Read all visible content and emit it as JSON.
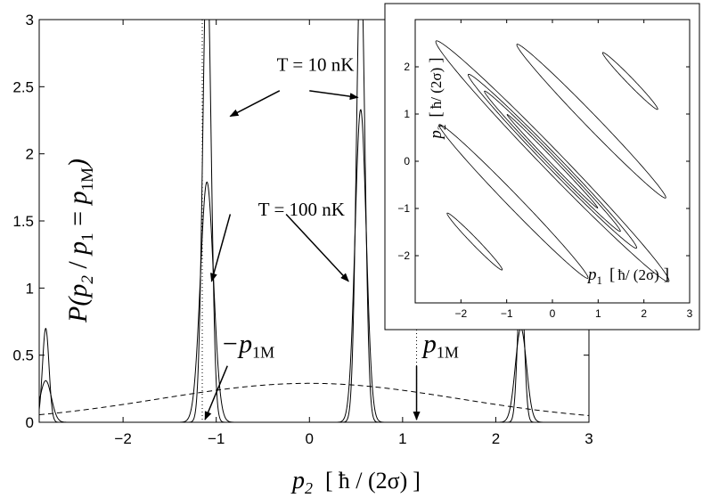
{
  "chart_data": [
    {
      "type": "line",
      "xlim": [
        -2.9,
        3
      ],
      "ylim": [
        0,
        3
      ],
      "x_ticks": [
        -2,
        -1,
        0,
        1,
        2,
        3
      ],
      "y_ticks": [
        0,
        0.5,
        1,
        1.5,
        2,
        2.5,
        3
      ],
      "x_tick_labels": [
        "−2",
        "−1",
        "0",
        "1",
        "2",
        "3"
      ],
      "y_tick_labels": [
        "0",
        "0.5",
        "1",
        "1.5",
        "2",
        "2.5",
        "3"
      ],
      "xlabel": {
        "var": "p",
        "sub": "2",
        "unit_open": "[",
        "unit": "ħ / (2σ)",
        "unit_close": "]"
      },
      "ylabel": {
        "text": "P(",
        "var1": "p",
        "sub1": "2",
        "slash": " / ",
        "var2": "p",
        "sub2": "1",
        "eq": " = ",
        "var3": "p",
        "sub3": "1M",
        "close": ")"
      },
      "grid": false,
      "series": [
        {
          "style": "solid",
          "kind": "gaussian-sum",
          "peaks": [
            [
              -2.83,
              0.7,
              0.035
            ],
            [
              -1.1,
              3.5,
              0.045
            ],
            [
              0.55,
              3.5,
              0.045
            ],
            [
              2.27,
              1.1,
              0.035
            ]
          ]
        },
        {
          "style": "solid",
          "kind": "gaussian-sum",
          "peaks": [
            [
              -2.83,
              0.31,
              0.06
            ],
            [
              -1.1,
              1.79,
              0.07
            ],
            [
              0.55,
              2.33,
              0.06
            ],
            [
              2.27,
              0.7,
              0.06
            ]
          ]
        },
        {
          "style": "dashed",
          "kind": "gaussian",
          "peaks": [
            [
              0,
              0.29,
              1.6
            ]
          ]
        }
      ],
      "reference_lines": [
        {
          "style": "dotted",
          "x": -1.15
        },
        {
          "style": "dotted",
          "x": 1.15
        }
      ],
      "annotations": [
        {
          "text": "T = 10 nK",
          "x": -0.35,
          "y": 2.62
        },
        {
          "text": "T = 100 nK",
          "x": -0.55,
          "y": 1.54
        },
        {
          "var": "−p",
          "sub": "1M",
          "x": -0.95,
          "y": 0.52
        },
        {
          "var": "p",
          "sub": "1M",
          "x": 1.22,
          "y": 0.52
        }
      ],
      "arrows": [
        {
          "from": [
            -0.32,
            2.47
          ],
          "to": [
            -0.85,
            2.28
          ]
        },
        {
          "from": [
            0.0,
            2.47
          ],
          "to": [
            0.52,
            2.42
          ]
        },
        {
          "from": [
            -0.85,
            1.55
          ],
          "to": [
            -1.05,
            1.05
          ]
        },
        {
          "from": [
            -0.25,
            1.55
          ],
          "to": [
            0.42,
            1.05
          ]
        },
        {
          "from": [
            -0.88,
            0.42
          ],
          "to": [
            -1.12,
            0.02
          ]
        },
        {
          "from": [
            1.15,
            0.42
          ],
          "to": [
            1.15,
            0.02
          ]
        }
      ]
    },
    {
      "type": "line",
      "role": "inset",
      "xlim": [
        -3,
        3
      ],
      "ylim": [
        -3,
        3
      ],
      "x_ticks": [
        -2,
        -1,
        0,
        1,
        2,
        3
      ],
      "y_ticks": [
        -2,
        -1,
        0,
        1,
        2
      ],
      "x_tick_labels": [
        "−2",
        "−1",
        "0",
        "1",
        "2",
        "3"
      ],
      "y_tick_labels": [
        "−2",
        "−1",
        "0",
        "1",
        "2"
      ],
      "xlabel": {
        "var": "p",
        "sub": "1",
        "unit_open": "[",
        "unit": "ħ/ (2σ)",
        "unit_close": "]"
      },
      "ylabel": {
        "var": "p",
        "sub": "2",
        "unit_open": "[",
        "unit": "ħ/ (2σ)",
        "unit_close": "]"
      },
      "grid": false,
      "contours": [
        {
          "cx": 0,
          "cy": 0,
          "rx": 1.4,
          "ry": 0.05
        },
        {
          "cx": 0,
          "cy": 0,
          "rx": 2.1,
          "ry": 0.1
        },
        {
          "cx": 0,
          "cy": 0,
          "rx": 2.6,
          "ry": 0.15
        },
        {
          "cx": 0,
          "cy": 0,
          "rx": 3.6,
          "ry": 0.22
        },
        {
          "cx": 0.85,
          "cy": 0.85,
          "rx": 2.3,
          "ry": 0.14
        },
        {
          "cx": -0.85,
          "cy": -0.85,
          "rx": 2.3,
          "ry": 0.14
        },
        {
          "cx": -1.7,
          "cy": -1.7,
          "rx": 0.85,
          "ry": 0.07
        },
        {
          "cx": 1.7,
          "cy": 1.7,
          "rx": 0.85,
          "ry": 0.07
        }
      ]
    }
  ]
}
